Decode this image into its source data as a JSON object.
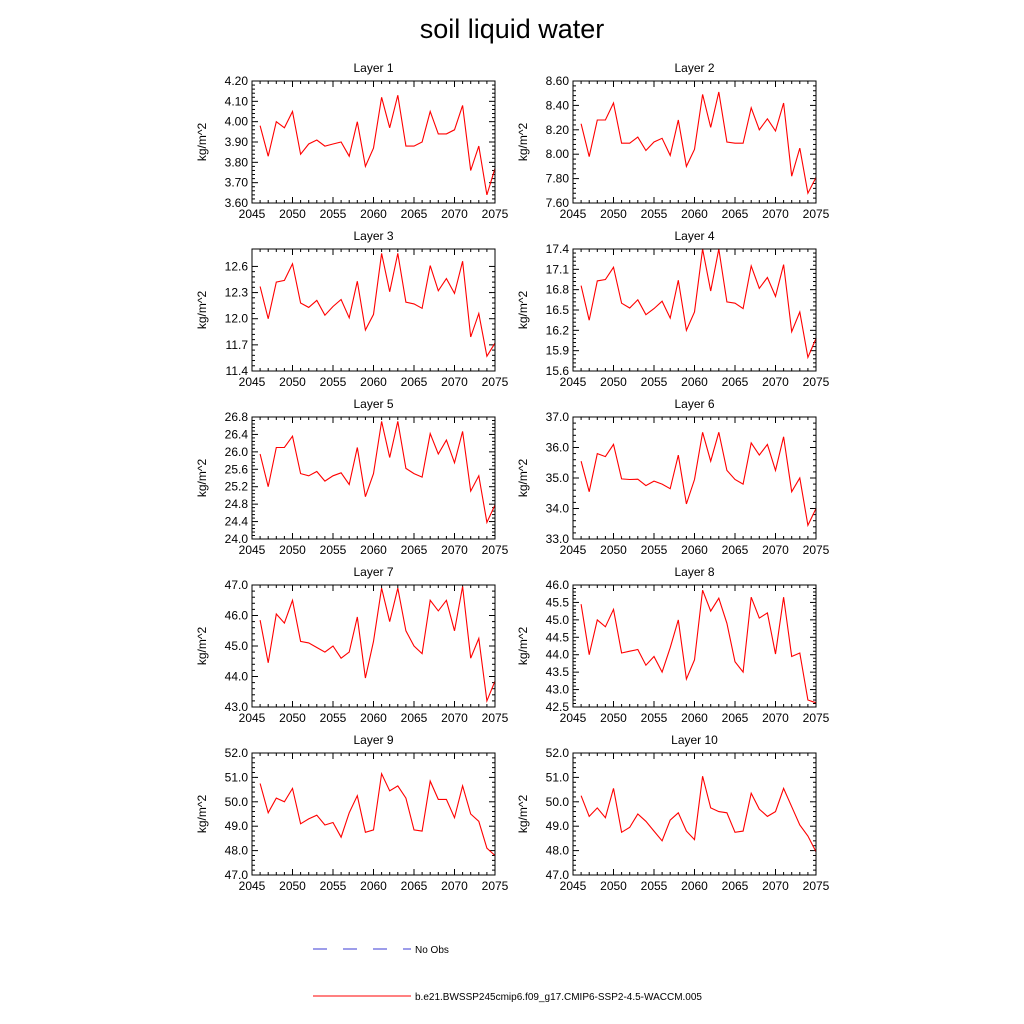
{
  "figure": {
    "title": "soil liquid water"
  },
  "legend": {
    "items": [
      {
        "label": "No Obs",
        "color": "#3b3bd6",
        "dash": true
      },
      {
        "label": "b.e21.BWSSP245cmip6.f09_g17.CMIP6-SSP2-4.5-WACCM.005",
        "color": "#ff0000",
        "dash": false
      }
    ]
  },
  "chart_data": [
    {
      "type": "line",
      "title": "Layer 1",
      "xlabel": "",
      "ylabel": "kg/m^2",
      "xlim": [
        2045,
        2075
      ],
      "ylim": [
        3.6,
        4.2
      ],
      "xticks": [
        2045,
        2050,
        2055,
        2060,
        2065,
        2070,
        2075
      ],
      "yticks": [
        "3.60",
        "3.70",
        "3.80",
        "3.90",
        "4.00",
        "4.10",
        "4.20"
      ],
      "series": [
        {
          "color": "#ff0000",
          "x": [
            2046,
            2047,
            2048,
            2049,
            2050,
            2051,
            2052,
            2053,
            2054,
            2055,
            2056,
            2057,
            2058,
            2059,
            2060,
            2061,
            2062,
            2063,
            2064,
            2065,
            2066,
            2067,
            2068,
            2069,
            2070,
            2071,
            2072,
            2073,
            2074,
            2075
          ],
          "y": [
            3.98,
            3.83,
            4.0,
            3.97,
            4.05,
            3.84,
            3.89,
            3.91,
            3.88,
            3.89,
            3.9,
            3.83,
            4.0,
            3.78,
            3.87,
            4.12,
            3.97,
            4.13,
            3.88,
            3.88,
            3.9,
            4.05,
            3.94,
            3.94,
            3.96,
            4.08,
            3.76,
            3.88,
            3.64,
            3.77
          ]
        }
      ]
    },
    {
      "type": "line",
      "title": "Layer 2",
      "xlabel": "",
      "ylabel": "kg/m^2",
      "xlim": [
        2045,
        2075
      ],
      "ylim": [
        7.6,
        8.6
      ],
      "xticks": [
        2045,
        2050,
        2055,
        2060,
        2065,
        2070,
        2075
      ],
      "yticks": [
        "7.60",
        "7.80",
        "8.00",
        "8.20",
        "8.40",
        "8.60"
      ],
      "series": [
        {
          "color": "#ff0000",
          "x": [
            2046,
            2047,
            2048,
            2049,
            2050,
            2051,
            2052,
            2053,
            2054,
            2055,
            2056,
            2057,
            2058,
            2059,
            2060,
            2061,
            2062,
            2063,
            2064,
            2065,
            2066,
            2067,
            2068,
            2069,
            2070,
            2071,
            2072,
            2073,
            2074,
            2075
          ],
          "y": [
            8.25,
            7.98,
            8.28,
            8.28,
            8.42,
            8.09,
            8.09,
            8.14,
            8.03,
            8.1,
            8.13,
            7.99,
            8.28,
            7.9,
            8.04,
            8.49,
            8.22,
            8.51,
            8.1,
            8.09,
            8.09,
            8.38,
            8.2,
            8.29,
            8.19,
            8.42,
            7.82,
            8.05,
            7.68,
            7.81
          ]
        }
      ]
    },
    {
      "type": "line",
      "title": "Layer 3",
      "xlabel": "",
      "ylabel": "kg/m^2",
      "xlim": [
        2045,
        2075
      ],
      "ylim": [
        11.4,
        12.8
      ],
      "xticks": [
        2045,
        2050,
        2055,
        2060,
        2065,
        2070,
        2075
      ],
      "yticks": [
        "11.4",
        "11.7",
        "12.0",
        "12.3",
        "12.6"
      ],
      "series": [
        {
          "color": "#ff0000",
          "x": [
            2046,
            2047,
            2048,
            2049,
            2050,
            2051,
            2052,
            2053,
            2054,
            2055,
            2056,
            2057,
            2058,
            2059,
            2060,
            2061,
            2062,
            2063,
            2064,
            2065,
            2066,
            2067,
            2068,
            2069,
            2070,
            2071,
            2072,
            2073,
            2074,
            2075
          ],
          "y": [
            12.37,
            12.0,
            12.42,
            12.44,
            12.63,
            12.18,
            12.13,
            12.21,
            12.04,
            12.14,
            12.22,
            12.01,
            12.43,
            11.87,
            12.05,
            12.75,
            12.31,
            12.75,
            12.19,
            12.17,
            12.12,
            12.61,
            12.32,
            12.46,
            12.29,
            12.66,
            11.79,
            12.06,
            11.57,
            11.72
          ]
        }
      ]
    },
    {
      "type": "line",
      "title": "Layer 4",
      "xlabel": "",
      "ylabel": "kg/m^2",
      "xlim": [
        2045,
        2075
      ],
      "ylim": [
        15.6,
        17.4
      ],
      "xticks": [
        2045,
        2050,
        2055,
        2060,
        2065,
        2070,
        2075
      ],
      "yticks": [
        "15.6",
        "15.9",
        "16.2",
        "16.5",
        "16.8",
        "17.1",
        "17.4"
      ],
      "series": [
        {
          "color": "#ff0000",
          "x": [
            2046,
            2047,
            2048,
            2049,
            2050,
            2051,
            2052,
            2053,
            2054,
            2055,
            2056,
            2057,
            2058,
            2059,
            2060,
            2061,
            2062,
            2063,
            2064,
            2065,
            2066,
            2067,
            2068,
            2069,
            2070,
            2071,
            2072,
            2073,
            2074,
            2075
          ],
          "y": [
            16.86,
            16.35,
            16.93,
            16.95,
            17.13,
            16.6,
            16.53,
            16.65,
            16.43,
            16.52,
            16.63,
            16.38,
            16.94,
            16.2,
            16.47,
            17.4,
            16.78,
            17.4,
            16.62,
            16.6,
            16.52,
            17.15,
            16.82,
            16.98,
            16.7,
            17.17,
            16.18,
            16.47,
            15.8,
            16.08
          ]
        }
      ]
    },
    {
      "type": "line",
      "title": "Layer 5",
      "xlabel": "",
      "ylabel": "kg/m^2",
      "xlim": [
        2045,
        2075
      ],
      "ylim": [
        24.0,
        26.8
      ],
      "xticks": [
        2045,
        2050,
        2055,
        2060,
        2065,
        2070,
        2075
      ],
      "yticks": [
        "24.0",
        "24.4",
        "24.8",
        "25.2",
        "25.6",
        "26.0",
        "26.4",
        "26.8"
      ],
      "series": [
        {
          "color": "#ff0000",
          "x": [
            2046,
            2047,
            2048,
            2049,
            2050,
            2051,
            2052,
            2053,
            2054,
            2055,
            2056,
            2057,
            2058,
            2059,
            2060,
            2061,
            2062,
            2063,
            2064,
            2065,
            2066,
            2067,
            2068,
            2069,
            2070,
            2071,
            2072,
            2073,
            2074,
            2075
          ],
          "y": [
            25.95,
            25.2,
            26.1,
            26.1,
            26.36,
            25.5,
            25.45,
            25.55,
            25.33,
            25.45,
            25.52,
            25.25,
            26.1,
            24.97,
            25.5,
            26.7,
            25.87,
            26.7,
            25.62,
            25.5,
            25.42,
            26.42,
            25.95,
            26.27,
            25.75,
            26.47,
            25.1,
            25.45,
            24.38,
            24.78
          ]
        }
      ]
    },
    {
      "type": "line",
      "title": "Layer 6",
      "xlabel": "",
      "ylabel": "kg/m^2",
      "xlim": [
        2045,
        2075
      ],
      "ylim": [
        33.0,
        37.0
      ],
      "xticks": [
        2045,
        2050,
        2055,
        2060,
        2065,
        2070,
        2075
      ],
      "yticks": [
        "33.0",
        "34.0",
        "35.0",
        "36.0",
        "37.0"
      ],
      "series": [
        {
          "color": "#ff0000",
          "x": [
            2046,
            2047,
            2048,
            2049,
            2050,
            2051,
            2052,
            2053,
            2054,
            2055,
            2056,
            2057,
            2058,
            2059,
            2060,
            2061,
            2062,
            2063,
            2064,
            2065,
            2066,
            2067,
            2068,
            2069,
            2070,
            2071,
            2072,
            2073,
            2074,
            2075
          ],
          "y": [
            35.55,
            34.55,
            35.8,
            35.7,
            36.1,
            34.97,
            34.95,
            34.96,
            34.75,
            34.9,
            34.8,
            34.65,
            35.75,
            34.15,
            34.95,
            36.5,
            35.55,
            36.5,
            35.25,
            34.95,
            34.8,
            36.15,
            35.75,
            36.1,
            35.25,
            36.35,
            34.55,
            35.0,
            33.45,
            34.0
          ]
        }
      ]
    },
    {
      "type": "line",
      "title": "Layer 7",
      "xlabel": "",
      "ylabel": "kg/m^2",
      "xlim": [
        2045,
        2075
      ],
      "ylim": [
        43.0,
        47.0
      ],
      "xticks": [
        2045,
        2050,
        2055,
        2060,
        2065,
        2070,
        2075
      ],
      "yticks": [
        "43.0",
        "44.0",
        "45.0",
        "46.0",
        "47.0"
      ],
      "series": [
        {
          "color": "#ff0000",
          "x": [
            2046,
            2047,
            2048,
            2049,
            2050,
            2051,
            2052,
            2053,
            2054,
            2055,
            2056,
            2057,
            2058,
            2059,
            2060,
            2061,
            2062,
            2063,
            2064,
            2065,
            2066,
            2067,
            2068,
            2069,
            2070,
            2071,
            2072,
            2073,
            2074,
            2075
          ],
          "y": [
            45.85,
            44.45,
            46.05,
            45.75,
            46.5,
            45.15,
            45.1,
            44.95,
            44.8,
            45.0,
            44.6,
            44.8,
            45.95,
            43.95,
            45.15,
            46.9,
            45.8,
            46.9,
            45.5,
            45.0,
            44.75,
            46.5,
            46.15,
            46.5,
            45.5,
            46.95,
            44.6,
            45.25,
            43.2,
            43.85
          ]
        }
      ]
    },
    {
      "type": "line",
      "title": "Layer 8",
      "xlabel": "",
      "ylabel": "kg/m^2",
      "xlim": [
        2045,
        2075
      ],
      "ylim": [
        42.5,
        46.0
      ],
      "xticks": [
        2045,
        2050,
        2055,
        2060,
        2065,
        2070,
        2075
      ],
      "yticks": [
        "42.5",
        "43.0",
        "43.5",
        "44.0",
        "44.5",
        "45.0",
        "45.5",
        "46.0"
      ],
      "series": [
        {
          "color": "#ff0000",
          "x": [
            2046,
            2047,
            2048,
            2049,
            2050,
            2051,
            2052,
            2053,
            2054,
            2055,
            2056,
            2057,
            2058,
            2059,
            2060,
            2061,
            2062,
            2063,
            2064,
            2065,
            2066,
            2067,
            2068,
            2069,
            2070,
            2071,
            2072,
            2073,
            2074,
            2075
          ],
          "y": [
            45.45,
            44.0,
            45.0,
            44.8,
            45.3,
            44.05,
            44.1,
            44.15,
            43.7,
            43.95,
            43.5,
            44.2,
            45.0,
            43.3,
            43.85,
            45.85,
            45.25,
            45.62,
            44.9,
            43.8,
            43.5,
            45.65,
            45.05,
            45.2,
            44.02,
            45.65,
            43.95,
            44.05,
            42.7,
            42.62
          ]
        }
      ]
    },
    {
      "type": "line",
      "title": "Layer 9",
      "xlabel": "",
      "ylabel": "kg/m^2",
      "xlim": [
        2045,
        2075
      ],
      "ylim": [
        47.0,
        52.0
      ],
      "xticks": [
        2045,
        2050,
        2055,
        2060,
        2065,
        2070,
        2075
      ],
      "yticks": [
        "47.0",
        "48.0",
        "49.0",
        "50.0",
        "51.0",
        "52.0"
      ],
      "series": [
        {
          "color": "#ff0000",
          "x": [
            2046,
            2047,
            2048,
            2049,
            2050,
            2051,
            2052,
            2053,
            2054,
            2055,
            2056,
            2057,
            2058,
            2059,
            2060,
            2061,
            2062,
            2063,
            2064,
            2065,
            2066,
            2067,
            2068,
            2069,
            2070,
            2071,
            2072,
            2073,
            2074,
            2075
          ],
          "y": [
            50.75,
            49.55,
            50.15,
            50.0,
            50.55,
            49.1,
            49.3,
            49.45,
            49.05,
            49.15,
            48.55,
            49.55,
            50.25,
            48.75,
            48.85,
            51.15,
            50.45,
            50.65,
            50.15,
            48.85,
            48.8,
            50.85,
            50.1,
            50.1,
            49.35,
            50.65,
            49.5,
            49.2,
            48.1,
            47.8
          ]
        }
      ]
    },
    {
      "type": "line",
      "title": "Layer 10",
      "xlabel": "",
      "ylabel": "kg/m^2",
      "xlim": [
        2045,
        2075
      ],
      "ylim": [
        47.0,
        52.0
      ],
      "xticks": [
        2045,
        2050,
        2055,
        2060,
        2065,
        2070,
        2075
      ],
      "yticks": [
        "47.0",
        "48.0",
        "49.0",
        "50.0",
        "51.0",
        "52.0"
      ],
      "series": [
        {
          "color": "#ff0000",
          "x": [
            2046,
            2047,
            2048,
            2049,
            2050,
            2051,
            2052,
            2053,
            2054,
            2055,
            2056,
            2057,
            2058,
            2059,
            2060,
            2061,
            2062,
            2063,
            2064,
            2065,
            2066,
            2067,
            2068,
            2069,
            2070,
            2071,
            2072,
            2073,
            2074,
            2075
          ],
          "y": [
            50.25,
            49.4,
            49.75,
            49.35,
            50.55,
            48.75,
            48.95,
            49.5,
            49.2,
            48.8,
            48.4,
            49.25,
            49.55,
            48.8,
            48.45,
            51.05,
            49.75,
            49.6,
            49.55,
            48.75,
            48.8,
            50.35,
            49.7,
            49.4,
            49.6,
            50.55,
            49.8,
            49.05,
            48.6,
            47.95
          ]
        }
      ]
    }
  ]
}
